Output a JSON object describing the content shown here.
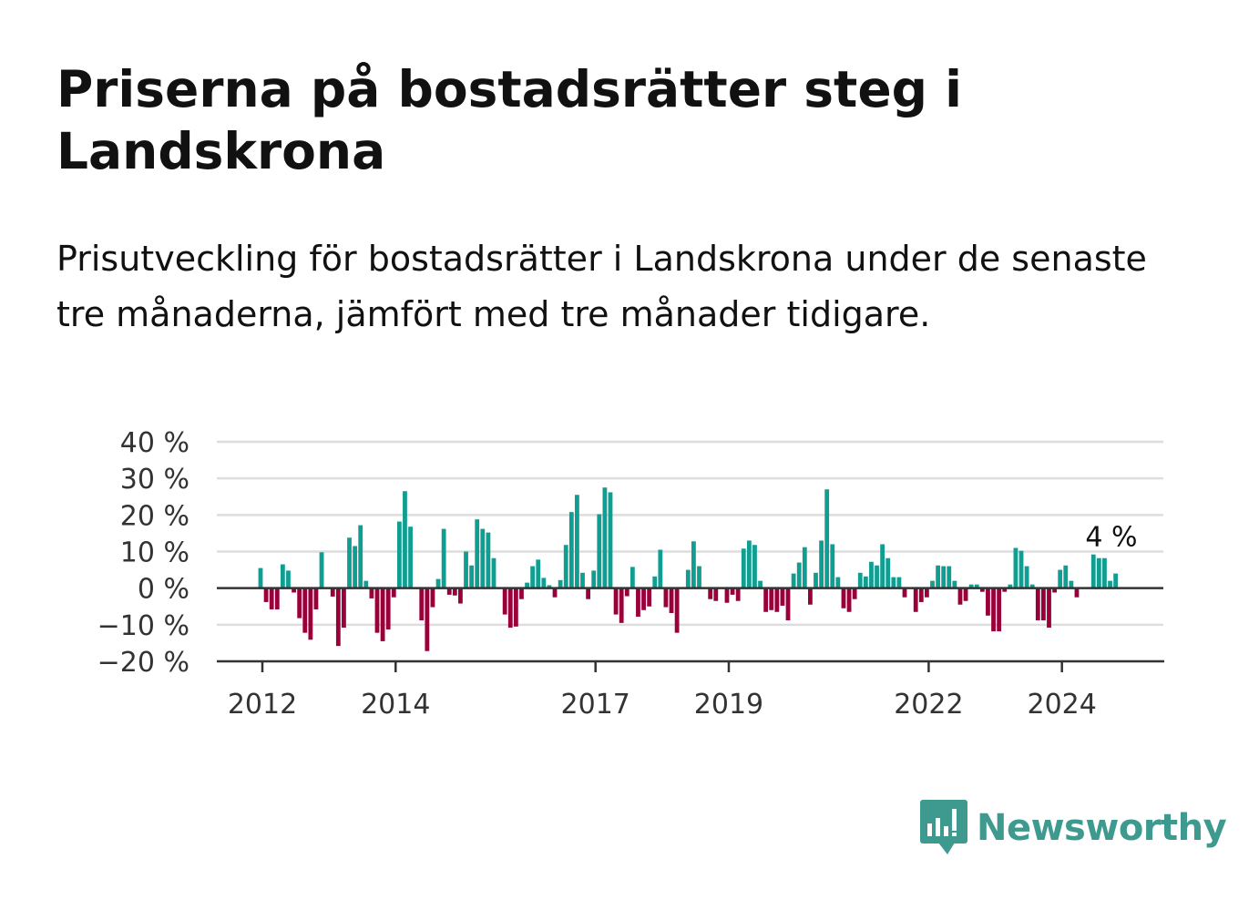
{
  "title": "Priserna på bostadsrätter steg i Landskrona",
  "subtitle": "Prisutveckling för bostadsrätter i Landskrona under de senaste tre månaderna, jämfört med tre månader tidigare.",
  "logo": {
    "icon": "newsworthy-chart-bubble-icon",
    "text": "Newsworthy",
    "color": "#3e9a8f"
  },
  "colors": {
    "positive": "#0f9e91",
    "negative": "#99003a",
    "grid": "#dddddd",
    "zero_line": "#333333",
    "axis": "#333333"
  },
  "chart_data": {
    "type": "bar",
    "title": "",
    "xlabel": "",
    "ylabel": "",
    "ylim": [
      -20,
      40
    ],
    "yticks": [
      40,
      30,
      20,
      10,
      0,
      -10,
      -20
    ],
    "ytick_labels": [
      "40 %",
      "30 %",
      "20 %",
      "10 %",
      "0 %",
      "−10 %",
      "−20 %"
    ],
    "xtick_labels": [
      "2012",
      "2014",
      "2017",
      "2019",
      "2022",
      "2024"
    ],
    "x_start": "2012-01",
    "x_end": "2024-10",
    "grid": true,
    "annotation": {
      "label": "4 %",
      "x": "2024-10",
      "value": 4
    },
    "series": [
      {
        "values": [
          5.5,
          -3.8,
          -5.8,
          -5.8,
          6.5,
          4.8,
          -1.2,
          -8.2,
          -12.2,
          -14.1,
          -5.8,
          9.8,
          0,
          -2.3,
          -15.8,
          -10.8,
          13.8,
          11.5,
          17.2,
          2.0,
          -2.8,
          -12.2,
          -14.5,
          -11.3,
          -2.5,
          18.2,
          26.5,
          16.8,
          0,
          -8.8,
          -17.2,
          -5.2,
          2.5,
          16.2,
          -1.8,
          -2.0,
          -4.2,
          10.0,
          6.2,
          18.8,
          16.2,
          15.2,
          8.2,
          0,
          -7.2,
          -10.8,
          -10.5,
          -3.0,
          1.5,
          6.0,
          7.8,
          2.8,
          0.8,
          -2.5,
          2.2,
          11.8,
          20.8,
          25.5,
          4.2,
          -3.0,
          4.8,
          20.2,
          27.5,
          26.2,
          -7.2,
          -9.5,
          -2.2,
          5.8,
          -7.8,
          -6.0,
          -5.0,
          3.2,
          10.5,
          -5.2,
          -6.8,
          -12.2,
          0.3,
          5.0,
          12.8,
          6.0,
          0,
          -3.0,
          -3.5,
          0,
          -4.0,
          -1.8,
          -3.5,
          10.8,
          13.0,
          11.8,
          2.0,
          -6.5,
          -6.0,
          -6.5,
          -4.8,
          -8.8,
          4.0,
          7.0,
          11.2,
          -4.5,
          4.2,
          13.0,
          27.0,
          12.0,
          3.0,
          -5.5,
          -6.5,
          -3.0,
          4.2,
          3.2,
          7.2,
          6.2,
          12.0,
          8.2,
          3.0,
          3.0,
          -2.5,
          0,
          -6.5,
          -3.8,
          -2.5,
          2.0,
          6.2,
          6.0,
          6.0,
          2.0,
          -4.5,
          -3.5,
          1.0,
          1.0,
          -1.0,
          -7.5,
          -11.8,
          -11.8,
          -1.0,
          1.0,
          11.0,
          10.2,
          6.0,
          1.0,
          -8.8,
          -8.8,
          -10.8,
          -1.2,
          5.0,
          6.2,
          2.0,
          -2.5,
          0,
          0,
          9.2,
          8.2,
          8.2,
          2.0,
          4.0
        ]
      }
    ]
  }
}
